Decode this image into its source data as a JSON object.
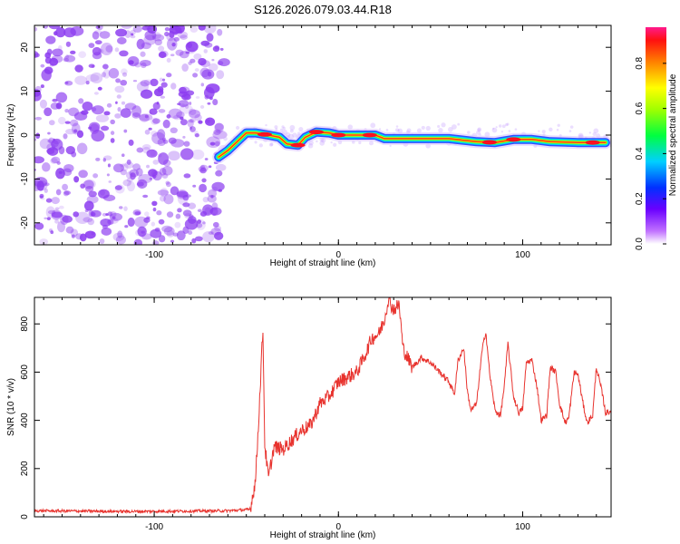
{
  "title": "S126.2026.079.03.44.R18",
  "colors": {
    "snr_line": "#e8332e",
    "noise": "#8c3cf0"
  },
  "chart_data": [
    {
      "type": "heatmap",
      "name": "spectrogram",
      "xlabel": "Height of straight line (km)",
      "ylabel": "Frequency (Hz)",
      "xlim": [
        -165,
        148
      ],
      "ylim": [
        -25,
        25
      ],
      "x_ticks": [
        -100,
        0,
        100
      ],
      "x_tick_labels": [
        "-100",
        "0",
        "100"
      ],
      "y_ticks": [
        20,
        10,
        0,
        -10,
        -20
      ],
      "y_tick_labels": [
        "20",
        "10",
        "0",
        "-10",
        "-20"
      ],
      "noise_region_km": [
        -165,
        -62
      ],
      "signal_track": [
        {
          "x": -65,
          "y": -5.0
        },
        {
          "x": -60,
          "y": -3.5
        },
        {
          "x": -55,
          "y": -1.5
        },
        {
          "x": -50,
          "y": 0.5
        },
        {
          "x": -45,
          "y": 0.5
        },
        {
          "x": -38,
          "y": 0.0
        },
        {
          "x": -32,
          "y": -0.5
        },
        {
          "x": -28,
          "y": -2.0
        },
        {
          "x": -22,
          "y": -2.3
        },
        {
          "x": -18,
          "y": -0.5
        },
        {
          "x": -12,
          "y": 0.7
        },
        {
          "x": -5,
          "y": 0.5
        },
        {
          "x": 0,
          "y": 0.0
        },
        {
          "x": 10,
          "y": 0.0
        },
        {
          "x": 20,
          "y": 0.0
        },
        {
          "x": 25,
          "y": -0.8
        },
        {
          "x": 40,
          "y": -0.8
        },
        {
          "x": 60,
          "y": -0.8
        },
        {
          "x": 75,
          "y": -1.5
        },
        {
          "x": 85,
          "y": -1.7
        },
        {
          "x": 95,
          "y": -1.0
        },
        {
          "x": 105,
          "y": -1.0
        },
        {
          "x": 115,
          "y": -1.5
        },
        {
          "x": 130,
          "y": -1.7
        },
        {
          "x": 145,
          "y": -1.7
        }
      ]
    },
    {
      "type": "colorbar",
      "name": "amplitude-colorbar",
      "label": "Normalized spectral amplitude",
      "range": [
        0.0,
        0.96
      ],
      "ticks": [
        0.0,
        0.2,
        0.4,
        0.6,
        0.8
      ],
      "tick_labels": [
        "0.0",
        "0.2",
        "0.4",
        "0.6",
        "0.8"
      ]
    },
    {
      "type": "line",
      "name": "snr",
      "xlabel": "Height of straight line (km)",
      "ylabel": "SNR (10 * v/v)",
      "xlim": [
        -165,
        148
      ],
      "ylim": [
        0,
        910
      ],
      "x_ticks": [
        -100,
        0,
        100
      ],
      "x_tick_labels": [
        "-100",
        "0",
        "100"
      ],
      "y_ticks": [
        0,
        200,
        400,
        600,
        800
      ],
      "y_tick_labels": [
        "0",
        "200",
        "400",
        "600",
        "800"
      ],
      "series": [
        {
          "name": "SNR",
          "x": [
            -165,
            -110,
            -60,
            -48,
            -45,
            -43,
            -41,
            -40,
            -38,
            -35,
            -30,
            -25,
            -20,
            -15,
            -10,
            -5,
            0,
            5,
            10,
            15,
            18,
            22,
            25,
            27,
            30,
            33,
            35,
            40,
            45,
            50,
            55,
            60,
            63,
            65,
            68,
            70,
            72,
            75,
            78,
            80,
            82,
            85,
            88,
            90,
            92,
            95,
            98,
            100,
            102,
            105,
            108,
            110,
            113,
            115,
            118,
            120,
            123,
            125,
            128,
            130,
            133,
            135,
            138,
            140,
            143,
            145,
            148
          ],
          "y": [
            25,
            22,
            25,
            30,
            150,
            450,
            780,
            300,
            160,
            290,
            280,
            320,
            360,
            380,
            470,
            500,
            560,
            580,
            600,
            680,
            740,
            760,
            820,
            900,
            860,
            880,
            700,
            620,
            660,
            640,
            600,
            560,
            510,
            650,
            700,
            520,
            440,
            470,
            690,
            770,
            600,
            440,
            420,
            540,
            720,
            500,
            430,
            450,
            640,
            650,
            530,
            400,
            420,
            620,
            600,
            470,
            390,
            410,
            600,
            590,
            460,
            390,
            420,
            620,
            520,
            430,
            440
          ]
        }
      ]
    }
  ]
}
